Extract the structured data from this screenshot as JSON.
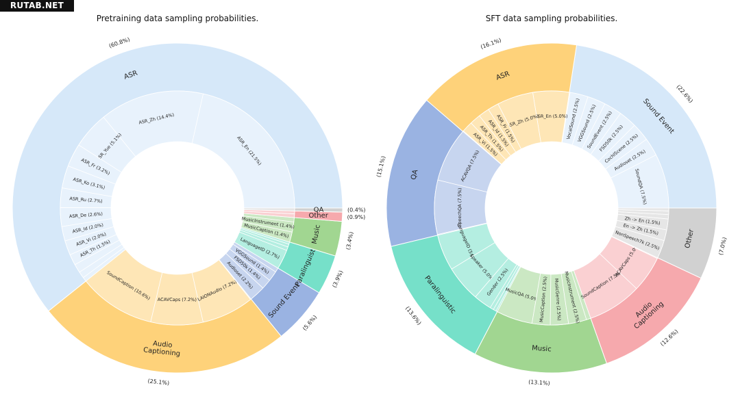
{
  "watermark": "RUTAB.NET",
  "colors": {
    "text": "#222222"
  },
  "chart_data": [
    {
      "type": "sunburst",
      "title": "Pretraining data sampling probabilities.",
      "start_angle_deg": 0,
      "outer": [
        {
          "name": "ASR",
          "pct": "(60.8%)",
          "value": 60.8,
          "color": "#d6e8f9",
          "children": [
            {
              "name": "ASR_En (21.5%)",
              "value": 21.5
            },
            {
              "name": "ASR_Zh (14.4%)",
              "value": 14.4
            },
            {
              "name": "ASR_Yue (5.1%)",
              "value": 5.1
            },
            {
              "name": "ASR_Fr (3.2%)",
              "value": 3.2
            },
            {
              "name": "ASR_Ko (3.1%)",
              "value": 3.1
            },
            {
              "name": "ASR_Ru (2.7%)",
              "value": 2.7
            },
            {
              "name": "ASR_De (2.6%)",
              "value": 2.6
            },
            {
              "name": "ASR_Id (2.0%)",
              "value": 2.0
            },
            {
              "name": "ASR_Vi (2.0%)",
              "value": 2.0
            },
            {
              "name": "ASR_Th (1.5%)",
              "value": 1.5
            },
            {
              "name": "",
              "value": 1.2
            },
            {
              "name": "",
              "value": 0.9
            },
            {
              "name": "",
              "value": 0.6
            }
          ]
        },
        {
          "name": "Audio Captioning",
          "pct": "(25.1%)",
          "value": 25.1,
          "color": "#fed27a",
          "children": [
            {
              "name": "SoundCaption (10.6%)",
              "value": 10.6
            },
            {
              "name": "ACAVCaps (7.2%)",
              "value": 7.2
            },
            {
              "name": "LAIONAudio (7.2%)",
              "value": 7.2
            },
            {
              "name": "",
              "value": 0.1
            }
          ]
        },
        {
          "name": "Sound Event",
          "pct": "(5.6%)",
          "value": 5.6,
          "color": "#9ab3e2",
          "children": [
            {
              "name": "Audioset (2.2%)",
              "value": 2.2
            },
            {
              "name": "FSD50k (1.4%)",
              "value": 1.4
            },
            {
              "name": "VGGSound (1.4%)",
              "value": 1.4
            },
            {
              "name": "",
              "value": 0.6
            }
          ]
        },
        {
          "name": "Paralinguistic",
          "pct": "(3.9%)",
          "value": 3.9,
          "color": "#76e0c9",
          "children": [
            {
              "name": "LanguageID (2.7%)",
              "value": 2.7
            },
            {
              "name": "",
              "value": 0.5
            },
            {
              "name": "",
              "value": 0.4
            },
            {
              "name": "",
              "value": 0.3
            }
          ]
        },
        {
          "name": "Music",
          "pct": "(3.4%)",
          "value": 3.4,
          "color": "#a1d691",
          "children": [
            {
              "name": "MusicCaption (1.4%)",
              "value": 1.4
            },
            {
              "name": "MusicInstrument (1.4%)",
              "value": 1.4
            },
            {
              "name": "",
              "value": 0.6
            }
          ]
        },
        {
          "name": "Other",
          "pct": "(0.9%)",
          "value": 0.9,
          "color": "#f6a9ad",
          "children": [
            {
              "name": "",
              "value": 0.5
            },
            {
              "name": "",
              "value": 0.4
            }
          ]
        },
        {
          "name": "QA",
          "pct": "(0.4%)",
          "value": 0.4,
          "color": "#d1d1d1",
          "children": [
            {
              "name": "",
              "value": 0.4
            }
          ]
        }
      ]
    },
    {
      "type": "sunburst",
      "title": "SFT data sampling probabilities.",
      "start_angle_deg": 0,
      "outer": [
        {
          "name": "Sound Event",
          "pct": "(22.6%)",
          "value": 22.6,
          "color": "#d6e8f9",
          "children": [
            {
              "name": "SoundQA (7.5%)",
              "value": 7.5
            },
            {
              "name": "Audioset (2.5%)",
              "value": 2.5
            },
            {
              "name": "CochlScene (2.5%)",
              "value": 2.5
            },
            {
              "name": "FSD50k (2.5%)",
              "value": 2.5
            },
            {
              "name": "SoundEvent (2.5%)",
              "value": 2.5
            },
            {
              "name": "VGGSound (2.5%)",
              "value": 2.5
            },
            {
              "name": "VocalSound (2.5%)",
              "value": 2.5
            },
            {
              "name": "",
              "value": 0.1
            }
          ]
        },
        {
          "name": "ASR",
          "pct": "(16.1%)",
          "value": 16.1,
          "color": "#fed27a",
          "children": [
            {
              "name": "ASR_En (5.0%)",
              "value": 5.0
            },
            {
              "name": "ASR_Zh (5.0%)",
              "value": 5.0
            },
            {
              "name": "ASR_Fr (1.5%)",
              "value": 1.5
            },
            {
              "name": "ASR_Id (1.5%)",
              "value": 1.5
            },
            {
              "name": "ASR_Th (1.5%)",
              "value": 1.5
            },
            {
              "name": "ASR_Vi (1.5%)",
              "value": 1.5
            },
            {
              "name": "",
              "value": 0.1
            }
          ]
        },
        {
          "name": "QA",
          "pct": "(15.1%)",
          "value": 15.1,
          "color": "#9ab3e2",
          "children": [
            {
              "name": "ACAVQA (7.5%)",
              "value": 7.5
            },
            {
              "name": "SpeechQA (7.5%)",
              "value": 7.5
            },
            {
              "name": "",
              "value": 0.1
            }
          ]
        },
        {
          "name": "Paralinguistic",
          "pct": "(13.6%)",
          "value": 13.6,
          "color": "#76e0c9",
          "children": [
            {
              "name": "LanguageID (5.0%)",
              "value": 5.0
            },
            {
              "name": "Speaker (5.0%)",
              "value": 5.0
            },
            {
              "name": "Gender (2.5%)",
              "value": 2.5
            },
            {
              "name": "",
              "value": 0.5
            },
            {
              "name": "",
              "value": 0.4
            },
            {
              "name": "",
              "value": 0.2
            }
          ]
        },
        {
          "name": "Music",
          "pct": "(13.1%)",
          "value": 13.1,
          "color": "#a1d691",
          "children": [
            {
              "name": "MusicQA (5.0%)",
              "value": 5.0
            },
            {
              "name": "MusicCaption (2.5%)",
              "value": 2.5
            },
            {
              "name": "MusicGenre (2.5%)",
              "value": 2.5
            },
            {
              "name": "MusicInstrument (2.5%)",
              "value": 2.5
            },
            {
              "name": "",
              "value": 0.6
            }
          ]
        },
        {
          "name": "Audio Captioning",
          "pct": "(12.6%)",
          "value": 12.6,
          "color": "#f6a9ad",
          "children": [
            {
              "name": "SoundCaption (7.5%)",
              "value": 7.5
            },
            {
              "name": "ACAVCaps (5.0%)",
              "value": 5.0
            },
            {
              "name": "",
              "value": 0.1
            }
          ]
        },
        {
          "name": "Other",
          "pct": "(7.0%)",
          "value": 7.0,
          "color": "#d1d1d1",
          "children": [
            {
              "name": "NonSpeech7k (2.5%)",
              "value": 2.5
            },
            {
              "name": "En -> Zh (1.5%)",
              "value": 1.5
            },
            {
              "name": "Zh -> En (1.5%)",
              "value": 1.5
            },
            {
              "name": "",
              "value": 0.6
            },
            {
              "name": "",
              "value": 0.5
            },
            {
              "name": "",
              "value": 0.4
            }
          ]
        }
      ]
    }
  ]
}
